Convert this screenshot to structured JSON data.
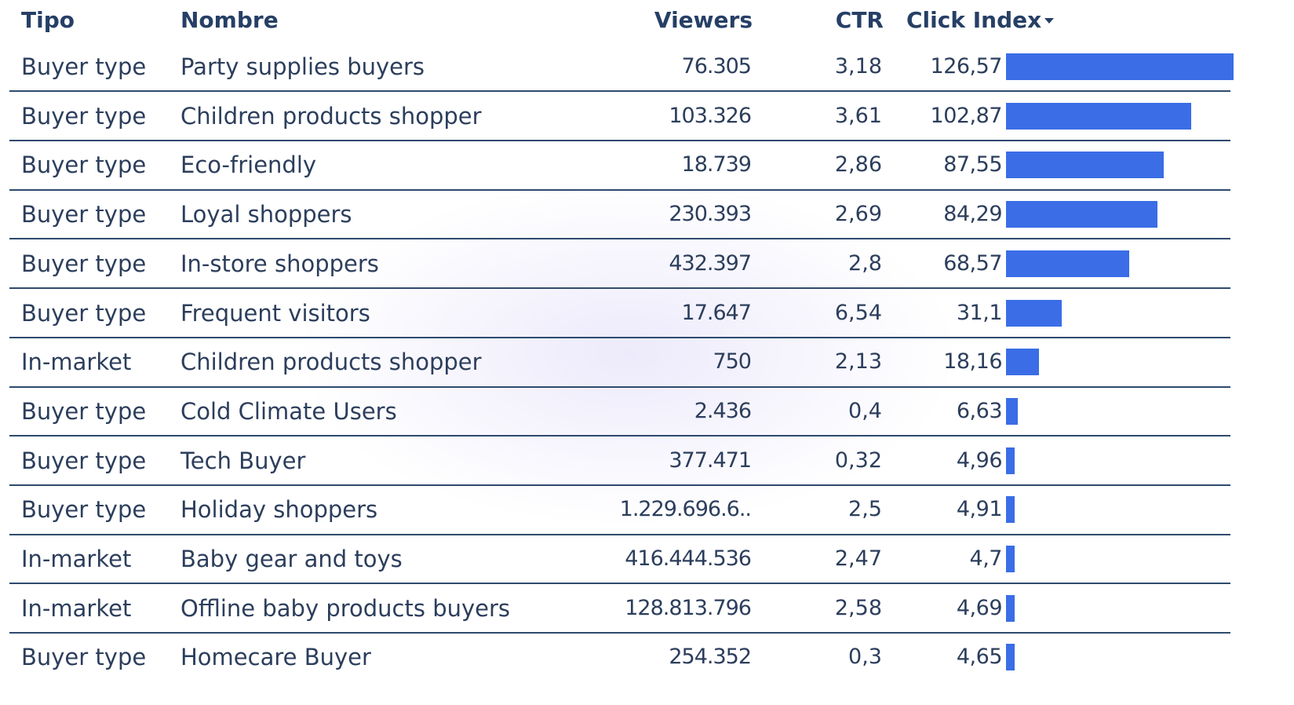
{
  "table": {
    "header": {
      "tipo": "Tipo",
      "nombre": "Nombre",
      "viewers": "Viewers",
      "ctr": "CTR",
      "click_index": "Click Index"
    },
    "rows": [
      {
        "tipo": "Buyer type",
        "nombre": "Party supplies buyers",
        "viewers": "76.305",
        "ctr": "3,18",
        "click_index": {
          "value": 126.57,
          "label": "126,57"
        }
      },
      {
        "tipo": "Buyer type",
        "nombre": "Children products shopper",
        "viewers": "103.326",
        "ctr": "3,61",
        "click_index": {
          "value": 102.87,
          "label": "102,87"
        }
      },
      {
        "tipo": "Buyer type",
        "nombre": "Eco-friendly",
        "viewers": "18.739",
        "ctr": "2,86",
        "click_index": {
          "value": 87.55,
          "label": "87,55"
        }
      },
      {
        "tipo": "Buyer type",
        "nombre": "Loyal shoppers",
        "viewers": "230.393",
        "ctr": "2,69",
        "click_index": {
          "value": 84.29,
          "label": "84,29"
        }
      },
      {
        "tipo": "Buyer type",
        "nombre": "In-store shoppers",
        "viewers": "432.397",
        "ctr": "2,8",
        "click_index": {
          "value": 68.57,
          "label": "68,57"
        }
      },
      {
        "tipo": "Buyer type",
        "nombre": "Frequent visitors",
        "viewers": "17.647",
        "ctr": "6,54",
        "click_index": {
          "value": 31.1,
          "label": "31,1"
        }
      },
      {
        "tipo": "In-market",
        "nombre": "Children products shopper",
        "viewers": "750",
        "ctr": "2,13",
        "click_index": {
          "value": 18.16,
          "label": "18,16"
        }
      },
      {
        "tipo": "Buyer type",
        "nombre": "Cold Climate Users",
        "viewers": "2.436",
        "ctr": "0,4",
        "click_index": {
          "value": 6.63,
          "label": "6,63"
        }
      },
      {
        "tipo": "Buyer type",
        "nombre": "Tech Buyer",
        "viewers": "377.471",
        "ctr": "0,32",
        "click_index": {
          "value": 4.96,
          "label": "4,96"
        }
      },
      {
        "tipo": "Buyer type",
        "nombre": "Holiday shoppers",
        "viewers": "1.229.696.6..",
        "ctr": "2,5",
        "click_index": {
          "value": 4.91,
          "label": "4,91"
        }
      },
      {
        "tipo": "In-market",
        "nombre": "Baby gear and toys",
        "viewers": "416.444.536",
        "ctr": "2,47",
        "click_index": {
          "value": 4.7,
          "label": "4,7"
        }
      },
      {
        "tipo": "In-market",
        "nombre": "Offline baby products buyers",
        "viewers": "128.813.796",
        "ctr": "2,58",
        "click_index": {
          "value": 4.69,
          "label": "4,69"
        }
      },
      {
        "tipo": "Buyer type",
        "nombre": "Homecare Buyer",
        "viewers": "254.352",
        "ctr": "0,3",
        "click_index": {
          "value": 4.65,
          "label": "4,65"
        }
      }
    ],
    "bar_color": "#3a6de6"
  }
}
